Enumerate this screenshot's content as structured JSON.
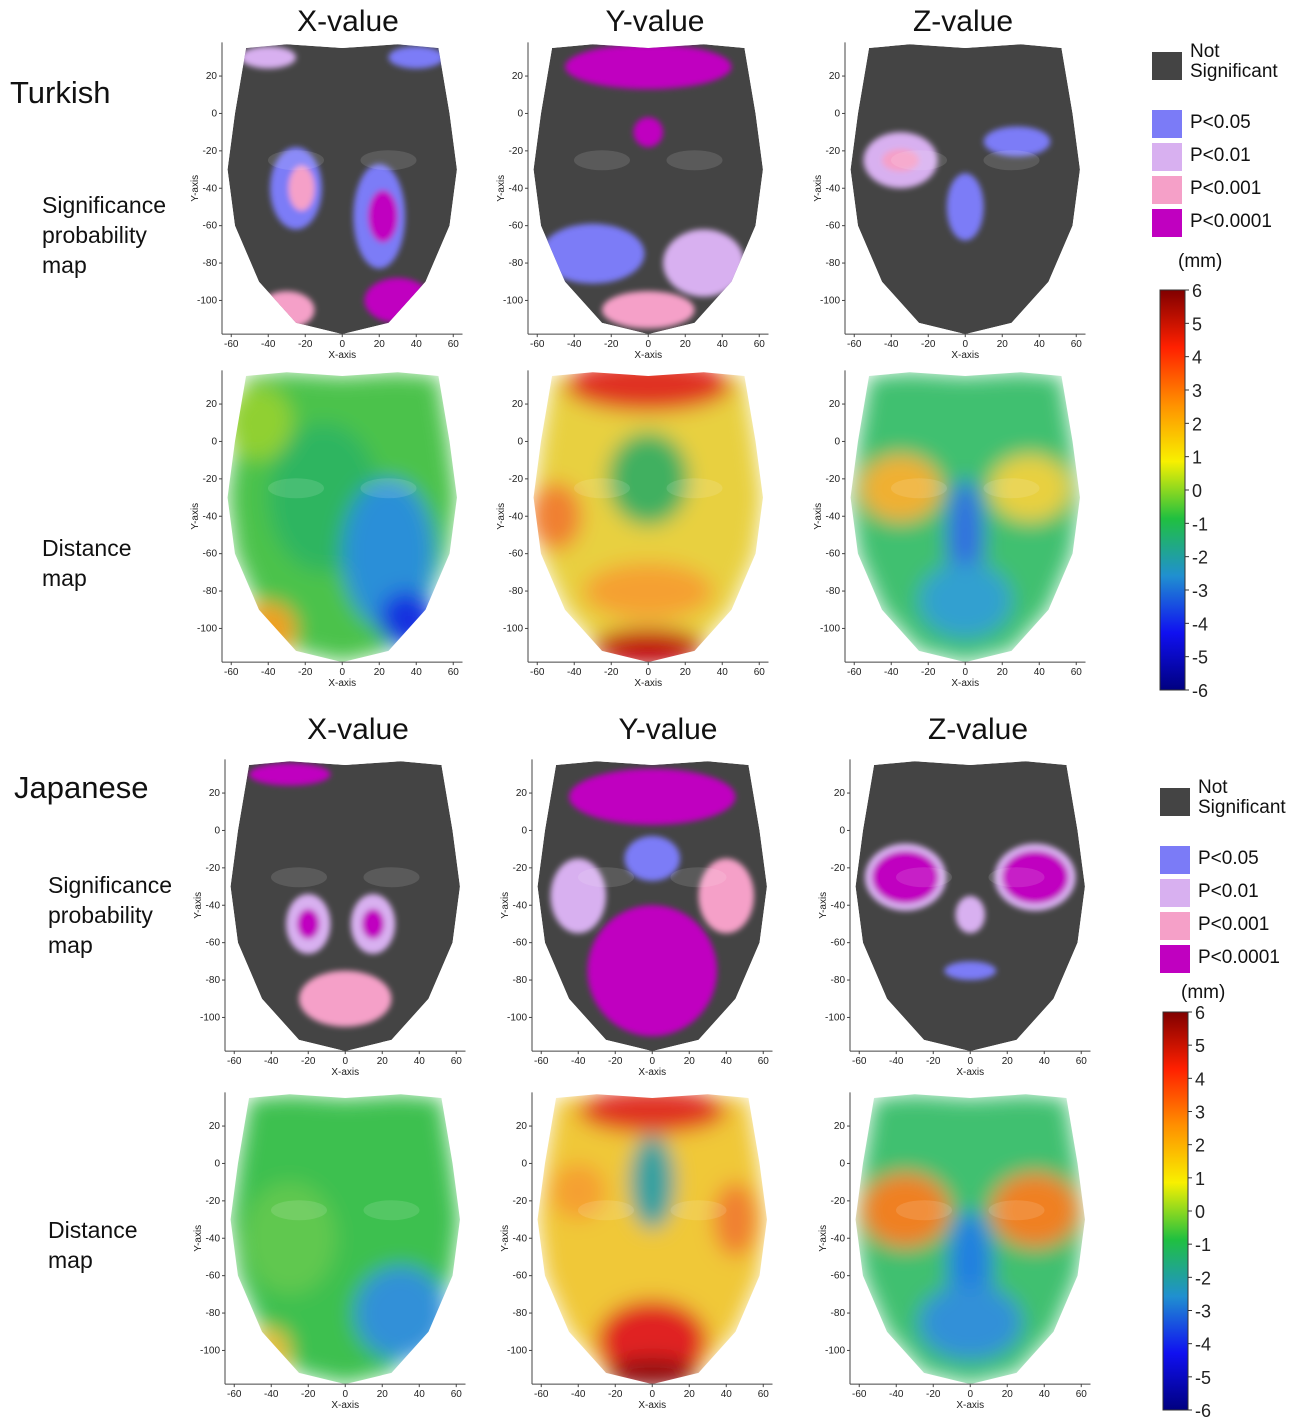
{
  "sections": [
    {
      "name": "Turkish",
      "columns": [
        "X-value",
        "Y-value",
        "Z-value"
      ],
      "rows": [
        "Significance probability map",
        "Distance map"
      ]
    },
    {
      "name": "Japanese",
      "columns": [
        "X-value",
        "Y-value",
        "Z-value"
      ],
      "rows": [
        "Significance probability map",
        "Distance map"
      ]
    }
  ],
  "axes": {
    "x_label": "X-axis",
    "y_label": "Y-axis",
    "xticks": [
      -60,
      -40,
      -20,
      0,
      20,
      40,
      60
    ],
    "yticks": [
      20,
      0,
      -20,
      -40,
      -60,
      -80,
      -100
    ]
  },
  "legend": [
    "Not Significant",
    "P<0.05",
    "P<0.01",
    "P<0.001",
    "P<0.0001"
  ],
  "colorbar": {
    "unit": "(mm)",
    "ticks": [
      6,
      5,
      4,
      3,
      2,
      1,
      0,
      -1,
      -2,
      -3,
      -4,
      -5,
      -6
    ]
  }
}
